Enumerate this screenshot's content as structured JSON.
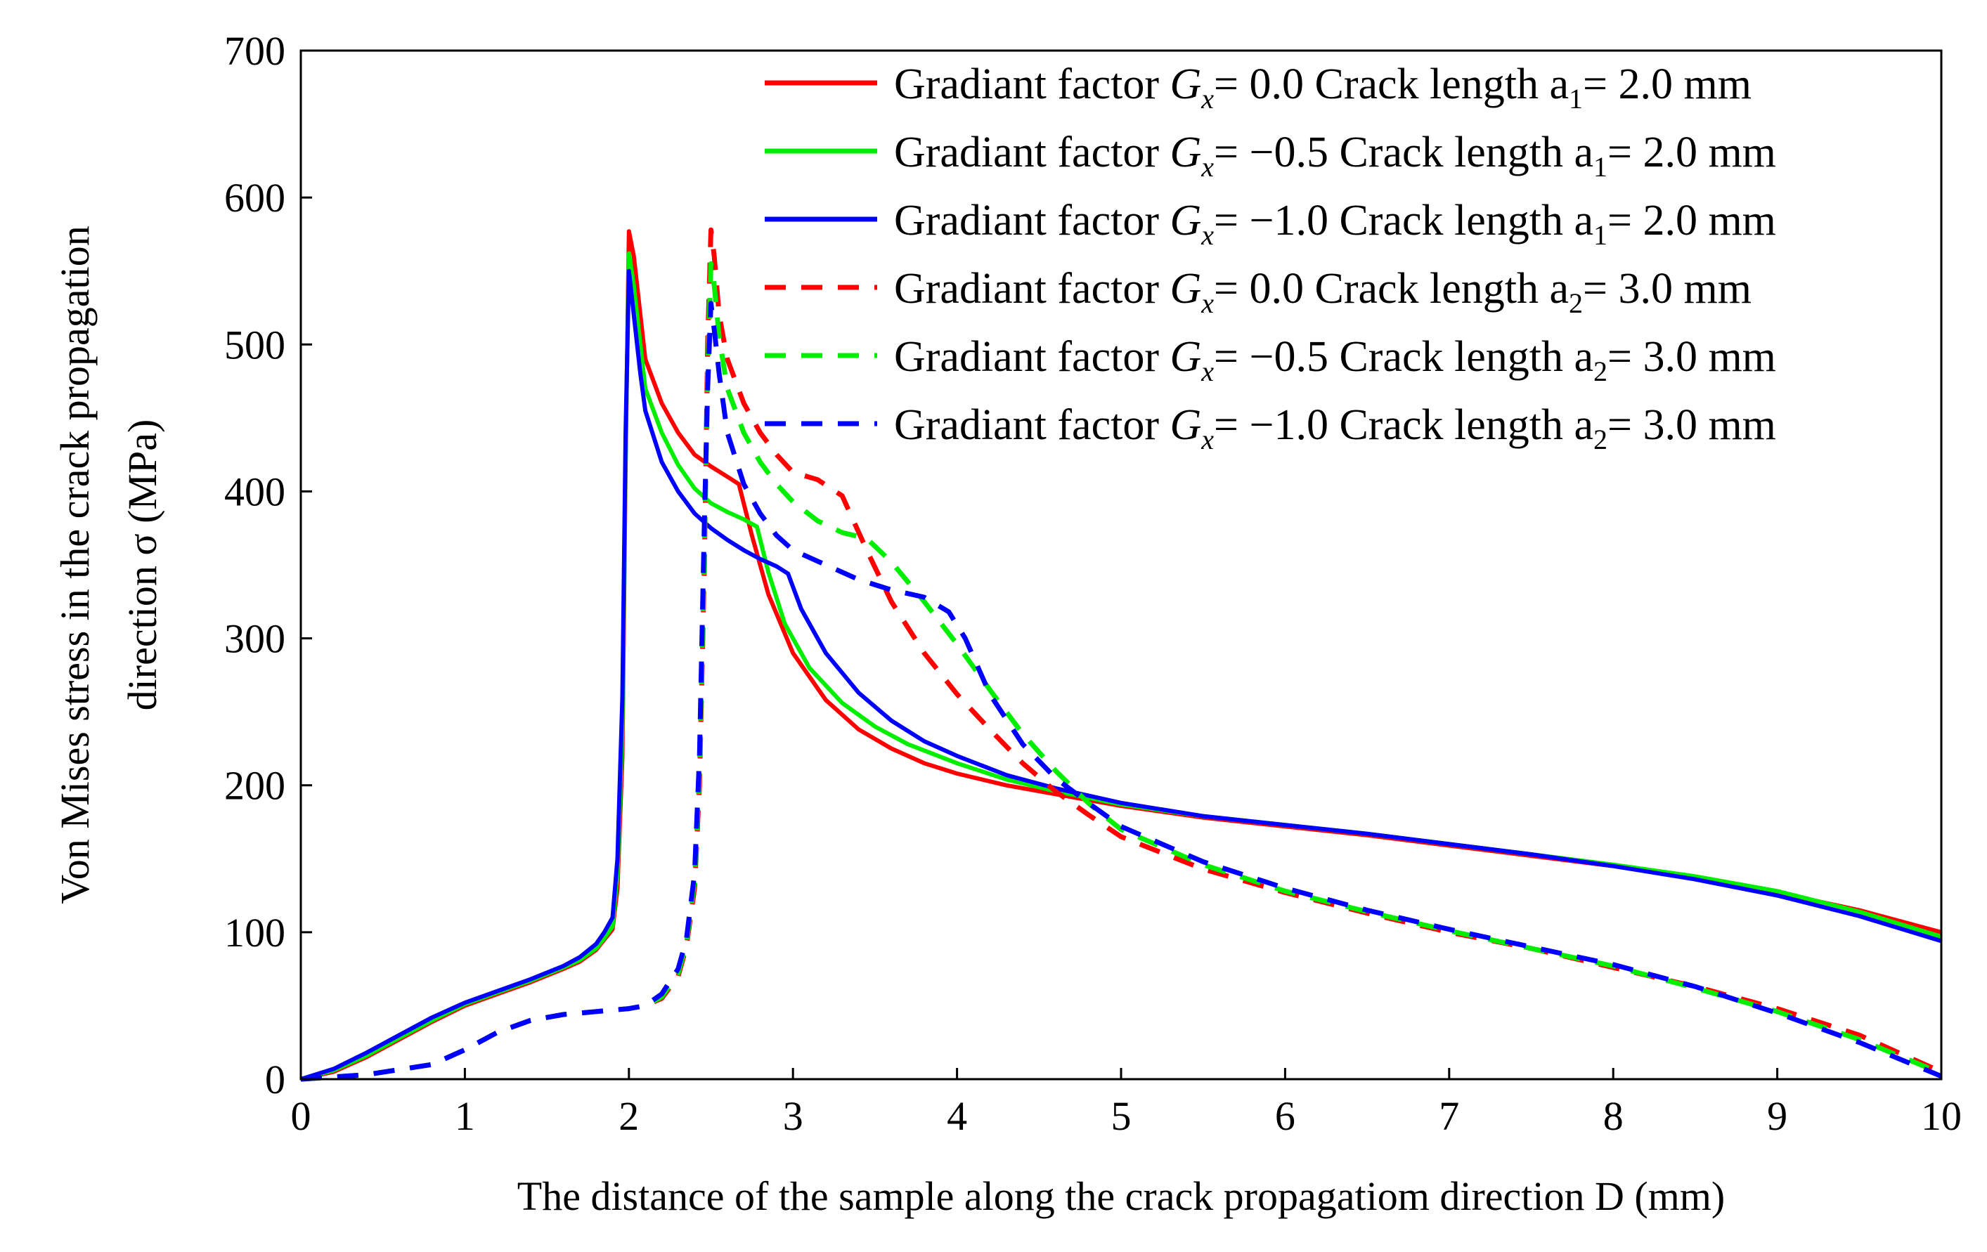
{
  "chart_data": {
    "type": "line",
    "title": "",
    "xlabel": "The distance of the sample along the crack propagatiom direction D (mm)",
    "ylabel": [
      "Von Mises stress in the crack propagation",
      "direction σ (MPa)"
    ],
    "xlim": [
      0,
      10
    ],
    "ylim": [
      0,
      700
    ],
    "xticks": [
      "0",
      "1",
      "2",
      "3",
      "4",
      "5",
      "6",
      "7",
      "8",
      "9",
      "10"
    ],
    "yticks": [
      "0",
      "100",
      "200",
      "300",
      "400",
      "500",
      "600",
      "700"
    ],
    "grid": false,
    "legend_position": "top-right",
    "series": [
      {
        "name": "Gradiant factor G_x= 0.0 Crack length a_1= 2.0 mm",
        "legend_prefix": "Gradiant factor ",
        "legend_var": "G",
        "legend_var_sub": "x",
        "legend_gx": "= 0.0",
        "legend_mid": " Crack length a",
        "legend_a_sub": "1",
        "legend_end": "= 2.0 mm",
        "color": "#ff0000",
        "dash": "solid",
        "x": [
          0,
          0.2,
          0.4,
          0.6,
          0.8,
          1.0,
          1.2,
          1.4,
          1.6,
          1.7,
          1.8,
          1.85,
          1.9,
          1.93,
          1.96,
          1.98,
          2.0,
          2.03,
          2.07,
          2.1,
          2.2,
          2.3,
          2.4,
          2.5,
          2.6,
          2.67,
          2.75,
          2.85,
          3.0,
          3.2,
          3.4,
          3.6,
          3.8,
          4.0,
          4.3,
          4.6,
          5.0,
          5.5,
          6.0,
          6.5,
          7.0,
          7.5,
          8.0,
          8.5,
          9.0,
          9.5,
          10.0
        ],
        "y": [
          0,
          5,
          15,
          27,
          39,
          50,
          58,
          66,
          75,
          80,
          88,
          95,
          102,
          130,
          220,
          420,
          577,
          560,
          520,
          490,
          460,
          440,
          425,
          417,
          410,
          405,
          370,
          330,
          290,
          258,
          238,
          225,
          215,
          208,
          200,
          194,
          186,
          178,
          172,
          166,
          159,
          152,
          145,
          137,
          127,
          115,
          100
        ]
      },
      {
        "name": "Gradiant factor G_x= −0.5 Crack length a_1= 2.0 mm",
        "legend_prefix": "Gradiant factor ",
        "legend_var": "G",
        "legend_var_sub": "x",
        "legend_gx": "= −0.5",
        "legend_mid": " Crack length a",
        "legend_a_sub": "1",
        "legend_end": "= 2.0 mm",
        "color": "#00ee00",
        "dash": "solid",
        "x": [
          0,
          0.2,
          0.4,
          0.6,
          0.8,
          1.0,
          1.2,
          1.4,
          1.6,
          1.7,
          1.8,
          1.85,
          1.9,
          1.93,
          1.96,
          1.98,
          2.0,
          2.03,
          2.07,
          2.1,
          2.2,
          2.3,
          2.4,
          2.5,
          2.6,
          2.7,
          2.78,
          2.85,
          2.95,
          3.1,
          3.3,
          3.5,
          3.7,
          4.0,
          4.3,
          4.6,
          5.0,
          5.5,
          6.0,
          6.5,
          7.0,
          7.5,
          8.0,
          8.5,
          9.0,
          9.5,
          10.0
        ],
        "y": [
          0,
          6,
          16,
          28,
          40,
          51,
          59,
          67,
          76,
          81,
          89,
          96,
          104,
          140,
          240,
          430,
          562,
          540,
          500,
          470,
          440,
          418,
          402,
          392,
          386,
          381,
          376,
          345,
          310,
          280,
          256,
          240,
          228,
          215,
          204,
          196,
          187,
          179,
          173,
          167,
          160,
          153,
          146,
          138,
          128,
          114,
          97
        ]
      },
      {
        "name": "Gradiant factor G_x= −1.0 Crack length a_1= 2.0 mm",
        "legend_prefix": "Gradiant factor ",
        "legend_var": "G",
        "legend_var_sub": "x",
        "legend_gx": "= −1.0",
        "legend_mid": " Crack length a",
        "legend_a_sub": "1",
        "legend_end": "= 2.0 mm",
        "color": "#0000ff",
        "dash": "solid",
        "x": [
          0,
          0.2,
          0.4,
          0.6,
          0.8,
          1.0,
          1.2,
          1.4,
          1.6,
          1.7,
          1.8,
          1.85,
          1.9,
          1.93,
          1.96,
          1.98,
          2.0,
          2.03,
          2.07,
          2.1,
          2.2,
          2.3,
          2.4,
          2.5,
          2.6,
          2.7,
          2.8,
          2.9,
          2.97,
          3.05,
          3.2,
          3.4,
          3.6,
          3.8,
          4.0,
          4.3,
          4.6,
          5.0,
          5.5,
          6.0,
          6.5,
          7.0,
          7.5,
          8.0,
          8.5,
          9.0,
          9.5,
          10.0
        ],
        "y": [
          0,
          7,
          18,
          30,
          42,
          52,
          60,
          68,
          77,
          83,
          92,
          100,
          110,
          150,
          260,
          440,
          550,
          520,
          480,
          455,
          420,
          400,
          385,
          375,
          367,
          360,
          354,
          349,
          344,
          320,
          290,
          263,
          244,
          230,
          220,
          207,
          198,
          188,
          179,
          173,
          167,
          160,
          153,
          145,
          136,
          125,
          111,
          94
        ]
      },
      {
        "name": "Gradiant factor G_x= 0.0 Crack length a_2= 3.0 mm",
        "legend_prefix": "Gradiant factor ",
        "legend_var": "G",
        "legend_var_sub": "x",
        "legend_gx": "= 0.0",
        "legend_mid": " Crack length a",
        "legend_a_sub": "2",
        "legend_end": "= 3.0 mm",
        "color": "#ff0000",
        "dash": "dashed",
        "x": [
          0,
          0.4,
          0.8,
          1.0,
          1.2,
          1.4,
          1.6,
          1.8,
          2.0,
          2.1,
          2.2,
          2.3,
          2.35,
          2.4,
          2.43,
          2.46,
          2.48,
          2.5,
          2.52,
          2.55,
          2.6,
          2.7,
          2.8,
          2.9,
          3.0,
          3.15,
          3.3,
          3.45,
          3.6,
          3.8,
          4.0,
          4.2,
          4.4,
          4.6,
          4.8,
          5.0,
          5.5,
          6.0,
          6.5,
          7.0,
          7.5,
          8.0,
          8.5,
          9.0,
          9.5,
          10.0
        ],
        "y": [
          0,
          3,
          10,
          20,
          32,
          40,
          44,
          46,
          48,
          50,
          55,
          70,
          90,
          130,
          200,
          350,
          500,
          578,
          560,
          520,
          490,
          460,
          440,
          425,
          413,
          408,
          397,
          360,
          325,
          290,
          262,
          238,
          215,
          196,
          180,
          165,
          143,
          127,
          113,
          100,
          89,
          76,
          63,
          48,
          30,
          5
        ]
      },
      {
        "name": "Gradiant factor G_x= −0.5 Crack length a_2= 3.0 mm",
        "legend_prefix": "Gradiant factor ",
        "legend_var": "G",
        "legend_var_sub": "x",
        "legend_gx": "= −0.5",
        "legend_mid": " Crack length a",
        "legend_a_sub": "2",
        "legend_end": "= 3.0 mm",
        "color": "#00ee00",
        "dash": "dashed",
        "x": [
          0,
          0.4,
          0.8,
          1.0,
          1.2,
          1.4,
          1.6,
          1.8,
          2.0,
          2.1,
          2.2,
          2.3,
          2.35,
          2.4,
          2.43,
          2.46,
          2.48,
          2.5,
          2.52,
          2.55,
          2.6,
          2.7,
          2.8,
          2.9,
          3.0,
          3.15,
          3.3,
          3.45,
          3.6,
          3.8,
          4.0,
          4.2,
          4.4,
          4.6,
          4.8,
          5.0,
          5.5,
          6.0,
          6.5,
          7.0,
          7.5,
          8.0,
          8.5,
          9.0,
          9.5,
          10.0
        ],
        "y": [
          0,
          3,
          10,
          20,
          32,
          40,
          44,
          46,
          48,
          50,
          56,
          72,
          92,
          135,
          210,
          360,
          480,
          555,
          540,
          505,
          470,
          440,
          420,
          405,
          393,
          380,
          372,
          368,
          352,
          325,
          296,
          265,
          235,
          210,
          188,
          170,
          146,
          128,
          114,
          101,
          89,
          77,
          62,
          46,
          27,
          4
        ]
      },
      {
        "name": "Gradiant factor G_x= −1.0 Crack length a_2= 3.0 mm",
        "legend_prefix": "Gradiant factor ",
        "legend_var": "G",
        "legend_var_sub": "x",
        "legend_gx": "= −1.0",
        "legend_mid": " Crack length a",
        "legend_a_sub": "2",
        "legend_end": "= 3.0 mm",
        "color": "#0000ff",
        "dash": "dashed",
        "x": [
          0,
          0.4,
          0.8,
          1.0,
          1.2,
          1.4,
          1.6,
          1.8,
          2.0,
          2.1,
          2.2,
          2.3,
          2.35,
          2.4,
          2.43,
          2.46,
          2.48,
          2.5,
          2.52,
          2.55,
          2.6,
          2.7,
          2.8,
          2.9,
          3.0,
          3.2,
          3.4,
          3.6,
          3.8,
          3.95,
          4.05,
          4.2,
          4.4,
          4.6,
          4.8,
          5.0,
          5.5,
          6.0,
          6.5,
          7.0,
          7.5,
          8.0,
          8.5,
          9.0,
          9.5,
          10.0
        ],
        "y": [
          0,
          3,
          10,
          20,
          32,
          40,
          44,
          46,
          48,
          50,
          58,
          75,
          95,
          140,
          220,
          380,
          470,
          528,
          510,
          480,
          440,
          405,
          385,
          370,
          360,
          350,
          340,
          333,
          328,
          318,
          300,
          262,
          228,
          205,
          188,
          172,
          148,
          130,
          115,
          102,
          90,
          78,
          63,
          45,
          25,
          2
        ]
      }
    ]
  }
}
